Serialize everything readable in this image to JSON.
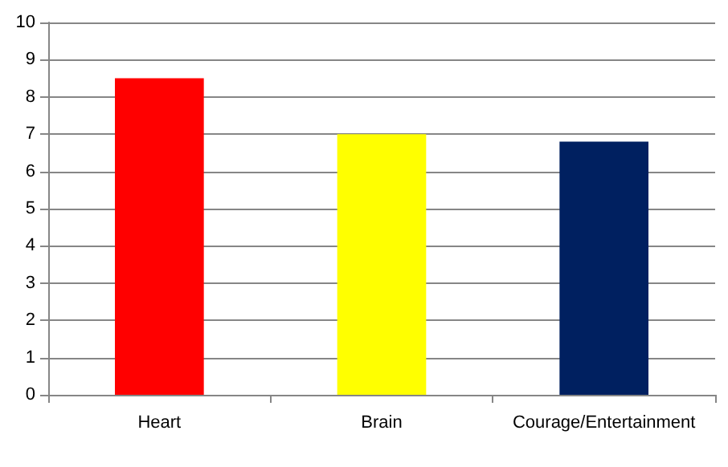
{
  "chart_data": {
    "type": "bar",
    "categories": [
      "Heart",
      "Brain",
      "Courage/Entertainment"
    ],
    "values": [
      8.5,
      7,
      6.8
    ],
    "colors": [
      "#ff0000",
      "#ffff00",
      "#002060"
    ],
    "ylim": [
      0,
      10
    ],
    "yticks": [
      0,
      1,
      2,
      3,
      4,
      5,
      6,
      7,
      8,
      9,
      10
    ],
    "grid": "y"
  }
}
